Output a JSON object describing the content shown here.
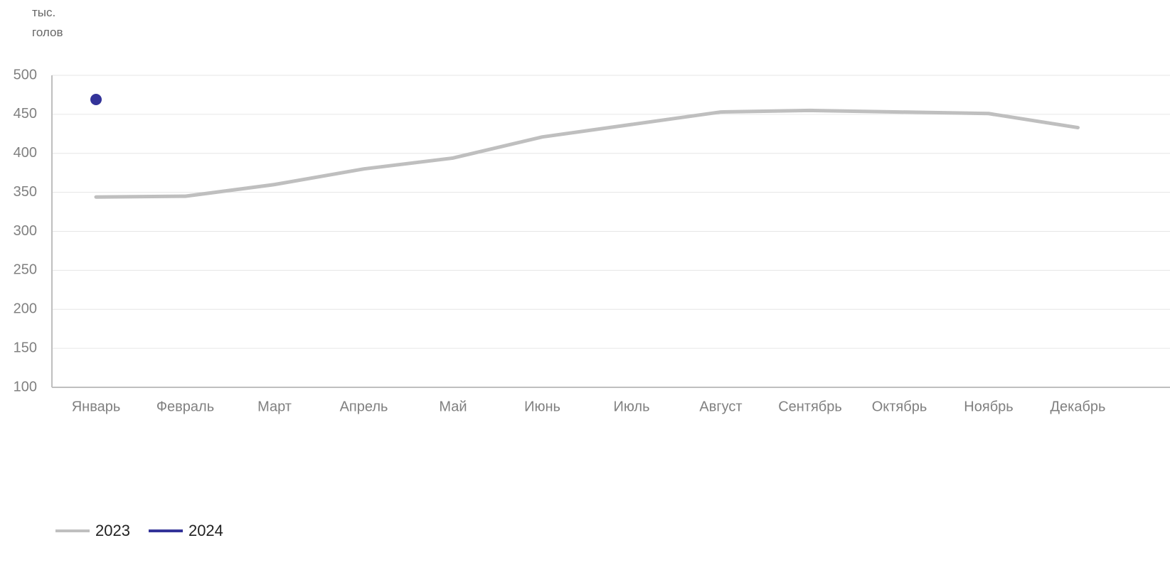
{
  "chart_data": {
    "type": "line",
    "y_label": "тыс. голов",
    "categories": [
      "Январь",
      "Февраль",
      "Март",
      "Апрель",
      "Май",
      "Июнь",
      "Июль",
      "Август",
      "Сентябрь",
      "Октябрь",
      "Ноябрь",
      "Декабрь"
    ],
    "series": [
      {
        "name": "2023",
        "color": "#bfbfbf",
        "values": [
          344,
          345,
          360,
          380,
          394,
          421,
          437,
          453,
          455,
          453,
          451,
          433
        ]
      },
      {
        "name": "2024",
        "color": "#333399",
        "values": [
          469,
          null,
          null,
          null,
          null,
          null,
          null,
          null,
          null,
          null,
          null,
          null
        ]
      }
    ],
    "ylim": [
      100,
      500
    ],
    "yticks": [
      100,
      150,
      200,
      250,
      300,
      350,
      400,
      450,
      500
    ],
    "grid": true,
    "legend": "bottom-left"
  }
}
